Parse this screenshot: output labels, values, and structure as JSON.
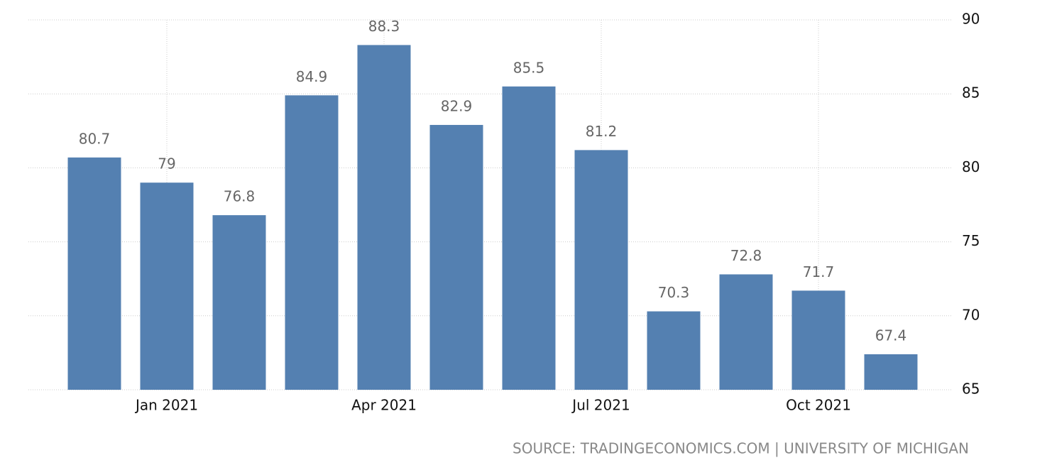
{
  "chart_data": {
    "type": "bar",
    "categories": [
      null,
      "Jan 2021",
      null,
      null,
      "Apr 2021",
      null,
      null,
      "Jul 2021",
      null,
      null,
      "Oct 2021",
      null
    ],
    "values": [
      80.7,
      79,
      76.8,
      84.9,
      88.3,
      82.9,
      85.5,
      81.2,
      70.3,
      72.8,
      71.7,
      67.4
    ],
    "color": "#5480b1",
    "ylim": [
      65,
      90
    ],
    "yticks": [
      65,
      70,
      75,
      80,
      85,
      90
    ],
    "grid": true,
    "source": "SOURCE: TRADINGECONOMICS.COM | UNIVERSITY OF MICHIGAN"
  }
}
